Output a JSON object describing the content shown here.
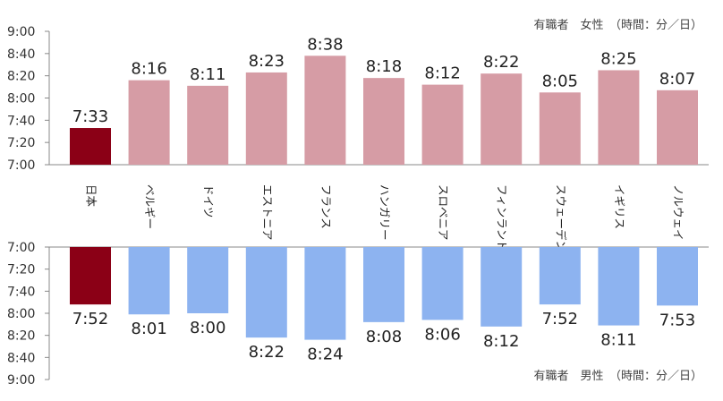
{
  "chart_data": [
    {
      "type": "bar",
      "caption": "有職者　女性　（時間：分／日）",
      "categories": [
        "日本",
        "ベルギー",
        "ドイツ",
        "エストニア",
        "フランス",
        "ハンガリー",
        "スロベニア",
        "フィンランド",
        "スウェーデン",
        "イギリス",
        "ノルウェイ"
      ],
      "values": [
        "7:33",
        "8:16",
        "8:11",
        "8:23",
        "8:38",
        "8:18",
        "8:12",
        "8:22",
        "8:05",
        "8:25",
        "8:07"
      ],
      "y_ticks": [
        "9:00",
        "8:40",
        "8:20",
        "8:00",
        "7:40",
        "7:20",
        "7:00"
      ],
      "ylim": [
        "7:00",
        "9:00"
      ],
      "colors": {
        "highlight": "#8b0016",
        "default": "#d69ca5"
      }
    },
    {
      "type": "bar",
      "caption": "有職者　男性　（時間：分／日）",
      "categories": [
        "日本",
        "ベルギー",
        "ドイツ",
        "エストニア",
        "フランス",
        "ハンガリー",
        "スロベニア",
        "フィンランド",
        "スウェーデン",
        "イギリス",
        "ノルウェイ"
      ],
      "values": [
        "7:52",
        "8:01",
        "8:00",
        "8:22",
        "8:24",
        "8:08",
        "8:06",
        "8:12",
        "7:52",
        "8:11",
        "7:53"
      ],
      "y_ticks": [
        "7:00",
        "7:20",
        "7:40",
        "8:00",
        "8:20",
        "8:40",
        "9:00"
      ],
      "ylim": [
        "7:00",
        "9:00"
      ],
      "axis_direction": "downward",
      "colors": {
        "highlight": "#8b0016",
        "default": "#8db3f0"
      }
    }
  ]
}
